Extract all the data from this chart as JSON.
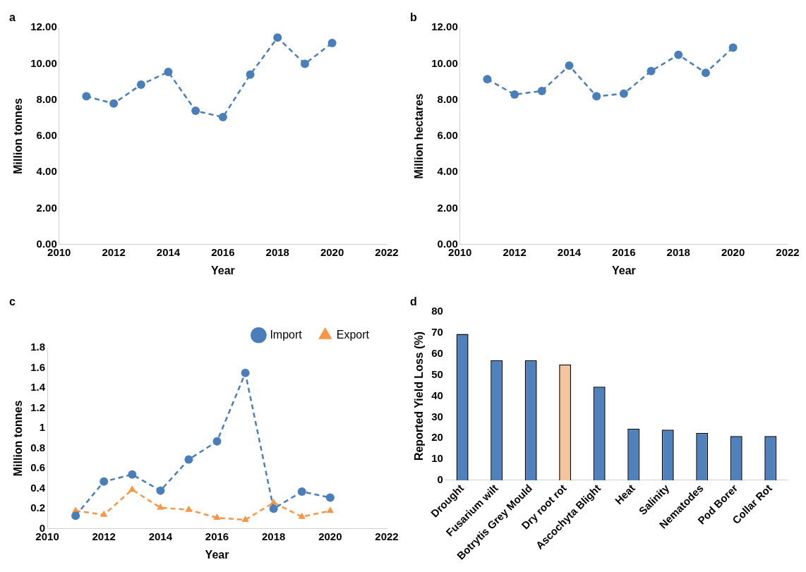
{
  "chart_data": [
    {
      "type": "line",
      "title": "a",
      "xlabel": "Year",
      "ylabel": "Million tonnes",
      "x": [
        2011,
        2012,
        2013,
        2014,
        2015,
        2016,
        2017,
        2018,
        2019,
        2020
      ],
      "series": [
        {
          "color": "#4a7ebb",
          "values": [
            8.2,
            7.8,
            8.85,
            9.55,
            7.4,
            7.05,
            9.4,
            11.45,
            10.0,
            11.15
          ],
          "marker": "circle",
          "line_style": "dashed"
        }
      ],
      "xlim": [
        2010,
        2022
      ],
      "xticks": [
        2010,
        2012,
        2014,
        2016,
        2018,
        2020,
        2022
      ],
      "ylim": [
        0,
        12
      ],
      "yticks": [
        {
          "value": 0,
          "label": "0.00"
        },
        {
          "value": 2,
          "label": "2.00"
        },
        {
          "value": 4,
          "label": "4.00"
        },
        {
          "value": 6,
          "label": "6.00"
        },
        {
          "value": 8,
          "label": "8.00"
        },
        {
          "value": 10,
          "label": "10.00"
        },
        {
          "value": 12,
          "label": "12.00"
        }
      ],
      "grid": false,
      "legend": false
    },
    {
      "type": "line",
      "title": "b",
      "xlabel": "Year",
      "ylabel": "Million hectares",
      "x": [
        2011,
        2012,
        2013,
        2014,
        2015,
        2016,
        2017,
        2018,
        2019,
        2020
      ],
      "series": [
        {
          "color": "#4a7ebb",
          "values": [
            9.15,
            8.3,
            8.5,
            9.9,
            8.2,
            8.35,
            9.6,
            10.5,
            9.5,
            10.9
          ],
          "marker": "circle",
          "line_style": "dashed"
        }
      ],
      "xlim": [
        2010,
        2022
      ],
      "xticks": [
        2010,
        2012,
        2014,
        2016,
        2018,
        2020,
        2022
      ],
      "ylim": [
        0,
        12
      ],
      "yticks": [
        {
          "value": 0,
          "label": "0.00"
        },
        {
          "value": 2,
          "label": "2.00"
        },
        {
          "value": 4,
          "label": "4.00"
        },
        {
          "value": 6,
          "label": "6.00"
        },
        {
          "value": 8,
          "label": "8.00"
        },
        {
          "value": 10,
          "label": "10.00"
        },
        {
          "value": 12,
          "label": "12.00"
        }
      ],
      "grid": false,
      "legend": false
    },
    {
      "type": "line",
      "title": "c",
      "xlabel": "Year",
      "ylabel": "Million tonnes",
      "x": [
        2011,
        2012,
        2013,
        2014,
        2015,
        2016,
        2017,
        2018,
        2019,
        2020
      ],
      "series": [
        {
          "name": "Import",
          "color": "#4a7ebb",
          "values": [
            0.13,
            0.47,
            0.54,
            0.38,
            0.69,
            0.87,
            1.55,
            0.2,
            0.37,
            0.31
          ],
          "marker": "circle",
          "line_style": "dashed"
        },
        {
          "name": "Export",
          "color": "#f79646",
          "values": [
            0.18,
            0.14,
            0.39,
            0.21,
            0.19,
            0.11,
            0.09,
            0.26,
            0.12,
            0.18
          ],
          "marker": "triangle",
          "line_style": "dashed"
        }
      ],
      "xlim": [
        2010,
        2022
      ],
      "xticks": [
        2010,
        2012,
        2014,
        2016,
        2018,
        2020,
        2022
      ],
      "ylim": [
        0,
        1.8
      ],
      "yticks": [
        0,
        0.2,
        0.4,
        0.6,
        0.8,
        1,
        1.2,
        1.4,
        1.6,
        1.8
      ],
      "grid": false,
      "legend": "top right"
    },
    {
      "type": "bar",
      "title": "d",
      "ylabel": "Reported Yield Loss (%)",
      "categories": [
        "Drought",
        "Fusarium wilt",
        "Botrytis Grey Mould",
        "Dry root rot",
        "Ascochyta Blight",
        "Heat",
        "Salinity",
        "Nematodes",
        "Pod Borer",
        "Collar Rot"
      ],
      "values": [
        69.5,
        57,
        57,
        55,
        44.5,
        24.5,
        24,
        22.5,
        21,
        21
      ],
      "colors": [
        "#4f81bd",
        "#4f81bd",
        "#4f81bd",
        "#f5c49a",
        "#4f81bd",
        "#4f81bd",
        "#4f81bd",
        "#4f81bd",
        "#4f81bd",
        "#4f81bd"
      ],
      "ylim": [
        0,
        80
      ],
      "yticks": [
        0,
        10,
        20,
        30,
        40,
        50,
        60,
        70,
        80
      ],
      "grid": false,
      "legend": false
    }
  ]
}
